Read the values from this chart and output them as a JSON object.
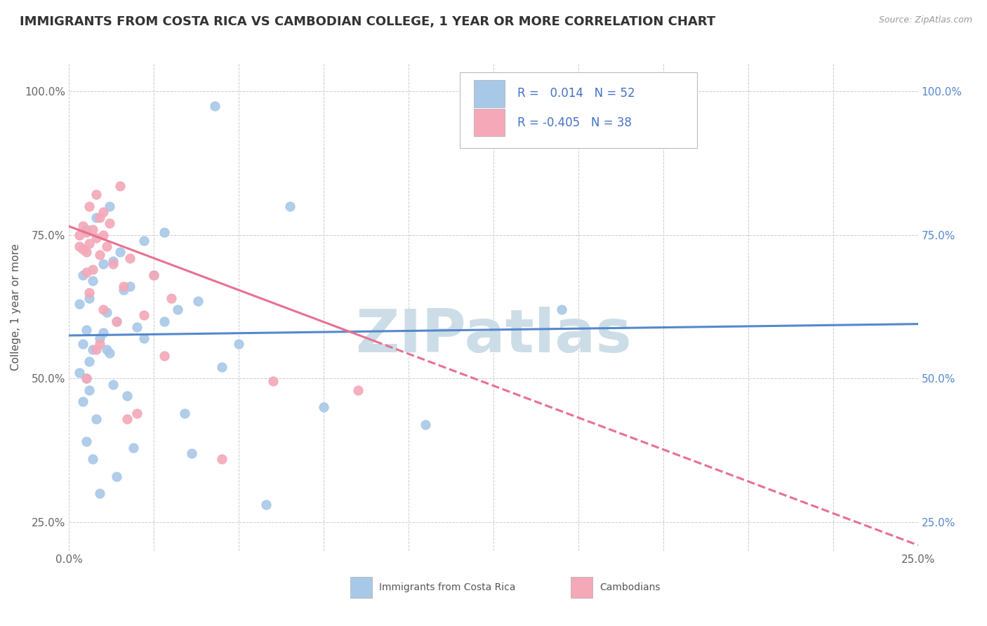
{
  "title": "IMMIGRANTS FROM COSTA RICA VS CAMBODIAN COLLEGE, 1 YEAR OR MORE CORRELATION CHART",
  "source_text": "Source: ZipAtlas.com",
  "ylabel": "College, 1 year or more",
  "x_tick_labels_shown": [
    "0.0%",
    "25.0%"
  ],
  "x_tick_values_shown": [
    0.0,
    25.0
  ],
  "x_minor_ticks": [
    2.5,
    5.0,
    7.5,
    10.0,
    12.5,
    15.0,
    17.5,
    20.0,
    22.5
  ],
  "y_tick_labels": [
    "25.0%",
    "50.0%",
    "75.0%",
    "100.0%"
  ],
  "y_tick_values": [
    25.0,
    50.0,
    75.0,
    100.0
  ],
  "xlim": [
    0.0,
    25.0
  ],
  "ylim": [
    20.0,
    105.0
  ],
  "legend_labels": [
    "Immigrants from Costa Rica",
    "Cambodians"
  ],
  "legend_R": [
    "0.014",
    "-0.405"
  ],
  "legend_N": [
    "52",
    "38"
  ],
  "blue_color": "#a8c8e8",
  "pink_color": "#f4a8b8",
  "blue_line_color": "#5588cc",
  "pink_line_color": "#e87090",
  "title_color": "#333333",
  "title_fontsize": 13,
  "axis_label_fontsize": 11,
  "tick_fontsize": 11,
  "legend_fontsize": 12,
  "watermark_text": "ZIPatlas",
  "watermark_color": "#ccdde8",
  "blue_scatter_x": [
    4.3,
    1.2,
    0.8,
    0.5,
    2.8,
    2.2,
    1.5,
    1.0,
    1.3,
    0.4,
    0.7,
    1.8,
    1.6,
    2.5,
    0.6,
    0.3,
    3.2,
    1.1,
    1.4,
    2.0,
    0.5,
    0.9,
    6.5,
    0.4,
    0.7,
    1.2,
    2.8,
    3.8,
    0.6,
    4.5,
    2.2,
    0.3,
    1.0,
    5.0,
    0.5,
    14.5,
    1.3,
    0.6,
    7.5,
    1.7,
    0.4,
    3.4,
    0.8,
    1.1,
    10.5,
    0.5,
    1.9,
    0.7,
    3.6,
    1.4,
    0.9,
    5.8
  ],
  "blue_scatter_y": [
    97.5,
    80.0,
    78.0,
    76.0,
    75.5,
    74.0,
    72.0,
    70.0,
    70.5,
    68.0,
    67.0,
    66.0,
    65.5,
    68.0,
    64.0,
    63.0,
    62.0,
    61.5,
    60.0,
    59.0,
    58.5,
    57.0,
    80.0,
    56.0,
    55.0,
    54.5,
    60.0,
    63.5,
    53.0,
    52.0,
    57.0,
    51.0,
    58.0,
    56.0,
    50.0,
    62.0,
    49.0,
    48.0,
    45.0,
    47.0,
    46.0,
    44.0,
    43.0,
    55.0,
    42.0,
    39.0,
    38.0,
    36.0,
    37.0,
    33.0,
    30.0,
    28.0
  ],
  "pink_scatter_x": [
    0.3,
    0.5,
    0.8,
    0.6,
    1.0,
    0.9,
    1.2,
    0.4,
    0.7,
    0.5,
    0.3,
    0.8,
    1.5,
    1.0,
    0.6,
    1.1,
    1.8,
    0.4,
    0.9,
    2.5,
    1.3,
    0.7,
    0.5,
    3.0,
    1.6,
    0.6,
    2.2,
    1.0,
    8.5,
    1.4,
    0.8,
    2.8,
    0.5,
    6.0,
    1.7,
    0.9,
    2.0,
    4.5
  ],
  "pink_scatter_y": [
    73.0,
    72.0,
    82.0,
    80.0,
    79.0,
    78.0,
    77.0,
    76.5,
    76.0,
    75.5,
    75.0,
    74.5,
    83.5,
    75.0,
    73.5,
    73.0,
    71.0,
    72.5,
    71.5,
    68.0,
    70.0,
    69.0,
    68.5,
    64.0,
    66.0,
    65.0,
    61.0,
    62.0,
    48.0,
    60.0,
    55.0,
    54.0,
    50.0,
    49.5,
    43.0,
    56.0,
    44.0,
    36.0
  ],
  "blue_trend_x0": 0.0,
  "blue_trend_x1": 25.0,
  "blue_trend_y0": 57.5,
  "blue_trend_y1": 59.5,
  "pink_trend_x0": 0.0,
  "pink_trend_x1": 25.0,
  "pink_trend_y0": 76.5,
  "pink_trend_y1": 21.0,
  "pink_solid_xmax": 9.0
}
